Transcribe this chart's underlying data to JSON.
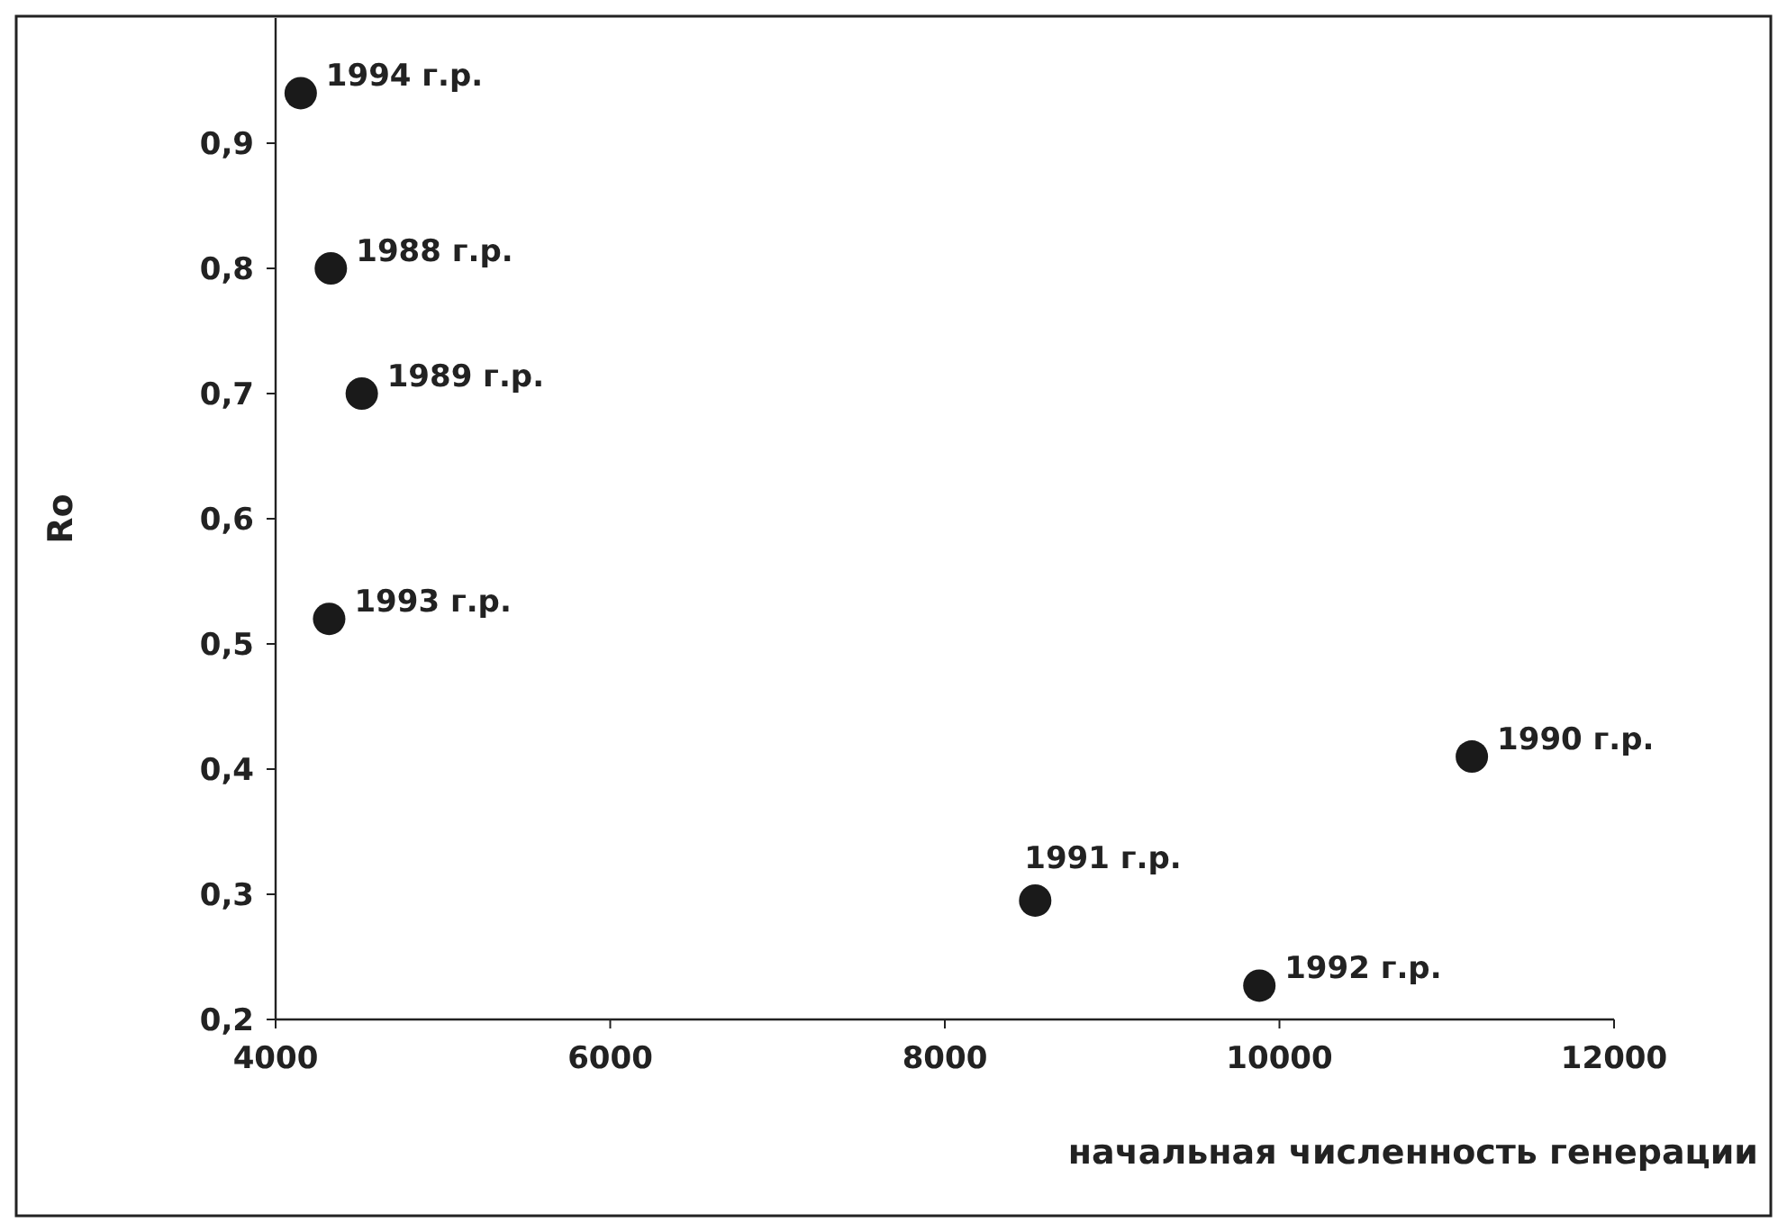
{
  "chart_data": {
    "type": "scatter",
    "xlabel": "начальная численность генерации",
    "ylabel": "Ro",
    "x": [
      4150,
      4330,
      4515,
      4320,
      11150,
      8540,
      9880
    ],
    "values": [
      0.94,
      0.8,
      0.7,
      0.52,
      0.41,
      0.295,
      0.227
    ],
    "color": "#1a1a1a",
    "marker": "circle",
    "grid": false,
    "xlim": [
      4000,
      12000
    ],
    "xticks": [
      4000,
      6000,
      8000,
      10000,
      12000
    ],
    "ylim": [
      0.2,
      1.0
    ],
    "yticks": [
      {
        "value": 0.2,
        "label": "0,2"
      },
      {
        "value": 0.3,
        "label": "0,3"
      },
      {
        "value": 0.4,
        "label": "0,4"
      },
      {
        "value": 0.5,
        "label": "0,5"
      },
      {
        "value": 0.6,
        "label": "0,6"
      },
      {
        "value": 0.7,
        "label": "0,7"
      },
      {
        "value": 0.8,
        "label": "0,8"
      },
      {
        "value": 0.9,
        "label": "0,9"
      }
    ],
    "annotations": [
      {
        "text": "1994 г.р.",
        "x": 4150,
        "y": 0.94
      },
      {
        "text": "1988 г.р.",
        "x": 4330,
        "y": 0.8
      },
      {
        "text": "1989 г.р.",
        "x": 4515,
        "y": 0.7
      },
      {
        "text": "1993 г.р.",
        "x": 4320,
        "y": 0.52
      },
      {
        "text": "1990 г.р.",
        "x": 11150,
        "y": 0.41
      },
      {
        "text": "1991 г.р.",
        "x": 8540,
        "y": 0.295
      },
      {
        "text": "1992 г.р.",
        "x": 9880,
        "y": 0.227
      }
    ]
  }
}
